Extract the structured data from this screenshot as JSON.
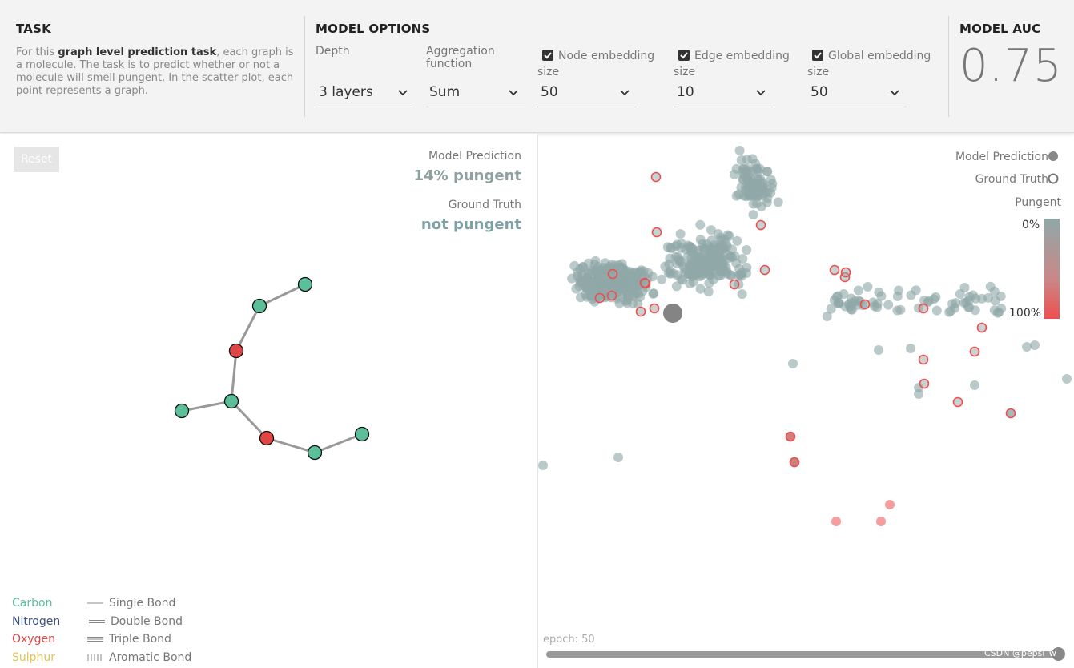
{
  "header": {
    "task": {
      "title": "TASK",
      "desc_pre": "For this ",
      "desc_bold": "graph level prediction task",
      "desc_post": ", each graph is a molecule. The task is to predict whether or not a molecule will smell pungent. In the scatter plot, each point represents a graph."
    },
    "model_options": {
      "title": "MODEL OPTIONS",
      "depth": {
        "label": "Depth",
        "value": "3 layers"
      },
      "aggregation": {
        "label": "Aggregation function",
        "value": "Sum"
      },
      "node_embedding": {
        "label": "Node embedding size",
        "value": "50",
        "checked": true
      },
      "edge_embedding": {
        "label": "Edge embedding size",
        "value": "10",
        "checked": true
      },
      "global_embedding": {
        "label": "Global embedding size",
        "value": "50",
        "checked": true
      }
    },
    "model_auc": {
      "title": "MODEL AUC",
      "value": "0.75"
    }
  },
  "left_panel": {
    "reset_label": "Reset",
    "prediction_label": "Model Prediction",
    "prediction_value": "14% pungent",
    "truth_label": "Ground Truth",
    "truth_value": "not pungent",
    "prediction_color": "#8fa0a0",
    "truth_color": "#7fa1a6",
    "molecule": {
      "atoms": [
        {
          "id": 0,
          "element": "Carbon"
        },
        {
          "id": 1,
          "element": "Carbon"
        },
        {
          "id": 2,
          "element": "Oxygen"
        },
        {
          "id": 3,
          "element": "Carbon"
        },
        {
          "id": 4,
          "element": "Carbon"
        },
        {
          "id": 5,
          "element": "Oxygen"
        },
        {
          "id": 6,
          "element": "Carbon"
        },
        {
          "id": 7,
          "element": "Carbon"
        }
      ],
      "bonds": [
        {
          "from": 0,
          "to": 1,
          "type": "Single Bond"
        },
        {
          "from": 1,
          "to": 2,
          "type": "Single Bond"
        },
        {
          "from": 2,
          "to": 3,
          "type": "Single Bond"
        },
        {
          "from": 3,
          "to": 4,
          "type": "Single Bond"
        },
        {
          "from": 3,
          "to": 5,
          "type": "Single Bond"
        },
        {
          "from": 5,
          "to": 6,
          "type": "Single Bond"
        },
        {
          "from": 6,
          "to": 7,
          "type": "Single Bond"
        }
      ]
    },
    "legend": {
      "atoms": [
        {
          "label": "Carbon",
          "color": "#5bbf9a"
        },
        {
          "label": "Nitrogen",
          "color": "#3d4f80"
        },
        {
          "label": "Oxygen",
          "color": "#e04545"
        },
        {
          "label": "Sulphur",
          "color": "#e3c553"
        }
      ],
      "bonds": [
        "Single Bond",
        "Double Bond",
        "Triple Bond",
        "Aromatic Bond"
      ]
    }
  },
  "right_panel": {
    "legend_prediction": "Model Prediction",
    "legend_truth": "Ground Truth",
    "legend_pungent": "Pungent",
    "scale_min": "0%",
    "scale_max": "100%",
    "epoch_label": "epoch: 50",
    "watermark": "CSDN @pepsi_w",
    "colors": {
      "not_pungent": "#8fa8a8",
      "pungent": "#ef4e4e",
      "selected": "#777777"
    }
  }
}
